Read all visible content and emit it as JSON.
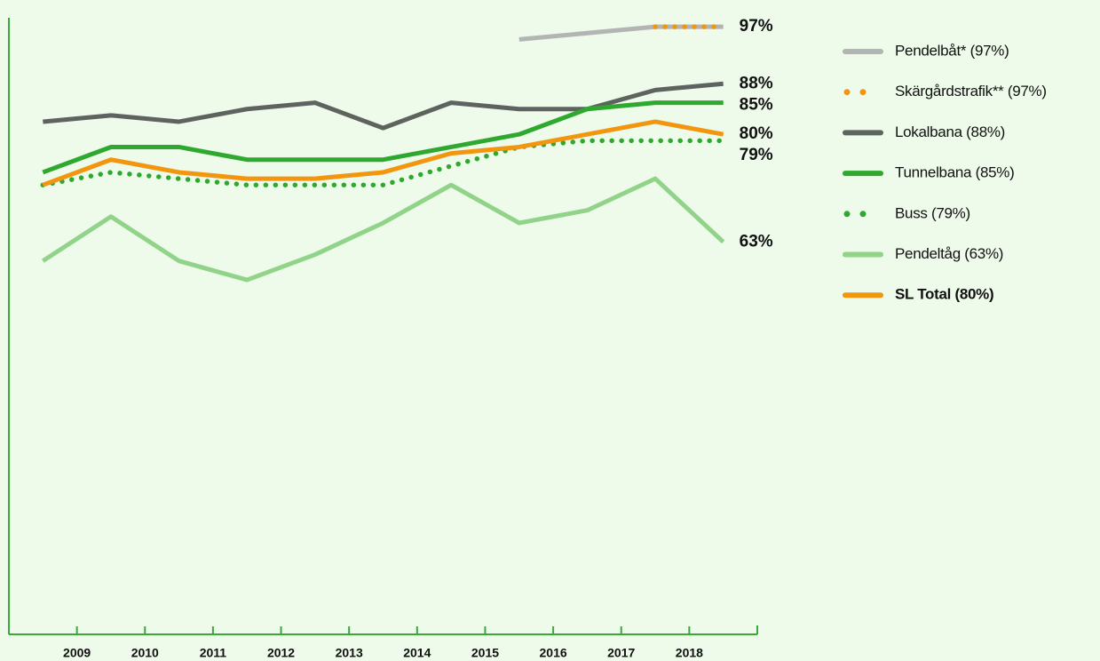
{
  "chart_data": {
    "type": "line",
    "x": [
      2008.5,
      2009.5,
      2010.5,
      2011.5,
      2012.5,
      2013.5,
      2014.5,
      2015.5,
      2016.5,
      2017.5,
      2018.5
    ],
    "xlim": [
      2008,
      2019
    ],
    "xticks": [
      2009,
      2010,
      2011,
      2012,
      2013,
      2014,
      2015,
      2016,
      2017,
      2018
    ],
    "ylim": [
      1,
      98
    ],
    "series": [
      {
        "name": "Pendelbåt* (97%)",
        "color": "#b3b5b3",
        "style": "solid",
        "values": [
          null,
          null,
          null,
          null,
          null,
          null,
          null,
          95,
          96,
          97,
          97
        ],
        "value_labels": [
          null,
          null,
          null,
          null,
          null,
          null,
          null,
          null,
          null,
          null,
          "97%"
        ]
      },
      {
        "name": "Skärgårdstrafik** (97%)",
        "color": "#f2960f",
        "style": "dotted",
        "values": [
          null,
          null,
          null,
          null,
          null,
          null,
          null,
          null,
          null,
          97,
          97
        ]
      },
      {
        "name": "Lokalbana (88%)",
        "color": "#5f6360",
        "style": "solid",
        "values": [
          82,
          83,
          82,
          84,
          85,
          81,
          85,
          84,
          84,
          87,
          88
        ],
        "value_labels": [
          null,
          null,
          null,
          null,
          null,
          null,
          null,
          null,
          null,
          null,
          "88%"
        ]
      },
      {
        "name": "Tunnelbana (85%)",
        "color": "#2ea82e",
        "style": "solid",
        "values": [
          74,
          78,
          78,
          76,
          76,
          76,
          78,
          80,
          84,
          85,
          85
        ],
        "value_labels": [
          null,
          null,
          null,
          null,
          null,
          null,
          null,
          null,
          null,
          null,
          "85%"
        ]
      },
      {
        "name": "Buss (79%)",
        "color": "#2ea82e",
        "style": "dotted",
        "values": [
          72,
          74,
          73,
          72,
          72,
          72,
          75,
          78,
          79,
          79,
          79
        ],
        "value_labels": [
          null,
          null,
          null,
          null,
          null,
          null,
          null,
          null,
          null,
          null,
          "79%"
        ]
      },
      {
        "name": "Pendeltåg (63%)",
        "color": "#92d38a",
        "style": "solid",
        "values": [
          60,
          67,
          60,
          57,
          61,
          66,
          72,
          66,
          68,
          73,
          63
        ],
        "value_labels": [
          null,
          null,
          null,
          null,
          null,
          null,
          null,
          null,
          null,
          null,
          "63%"
        ]
      },
      {
        "name": "SL Total (80%)",
        "color": "#f2960f",
        "style": "solid",
        "bold": true,
        "values": [
          72,
          76,
          74,
          73,
          73,
          74,
          77,
          78,
          80,
          82,
          80
        ],
        "value_labels": [
          null,
          null,
          null,
          null,
          null,
          null,
          null,
          null,
          null,
          null,
          "80%"
        ]
      }
    ]
  }
}
